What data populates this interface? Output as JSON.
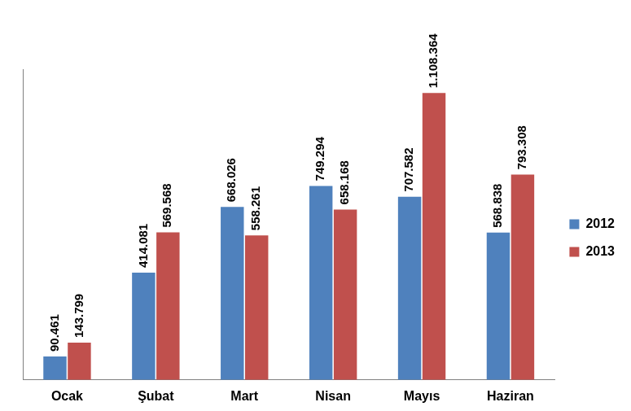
{
  "chart_data": {
    "type": "bar",
    "categories": [
      "Ocak",
      "Şubat",
      "Mart",
      "Nisan",
      "Mayıs",
      "Haziran"
    ],
    "series": [
      {
        "name": "2012",
        "color": "#4f81bd",
        "values": [
          90461,
          414081,
          668026,
          749294,
          707582,
          568838
        ],
        "value_labels": [
          "90.461",
          "414.081",
          "668.026",
          "749.294",
          "707.582",
          "568.838"
        ]
      },
      {
        "name": "2013",
        "color": "#c0504d",
        "values": [
          143799,
          569568,
          558261,
          658168,
          1108364,
          793308
        ],
        "value_labels": [
          "143.799",
          "569.568",
          "558.261",
          "658.168",
          "1.108.364",
          "793.308"
        ]
      }
    ],
    "ylim": [
      0,
      1200000
    ],
    "legend": "right",
    "data_labels": true,
    "tick_labels": "x",
    "grid": false
  }
}
